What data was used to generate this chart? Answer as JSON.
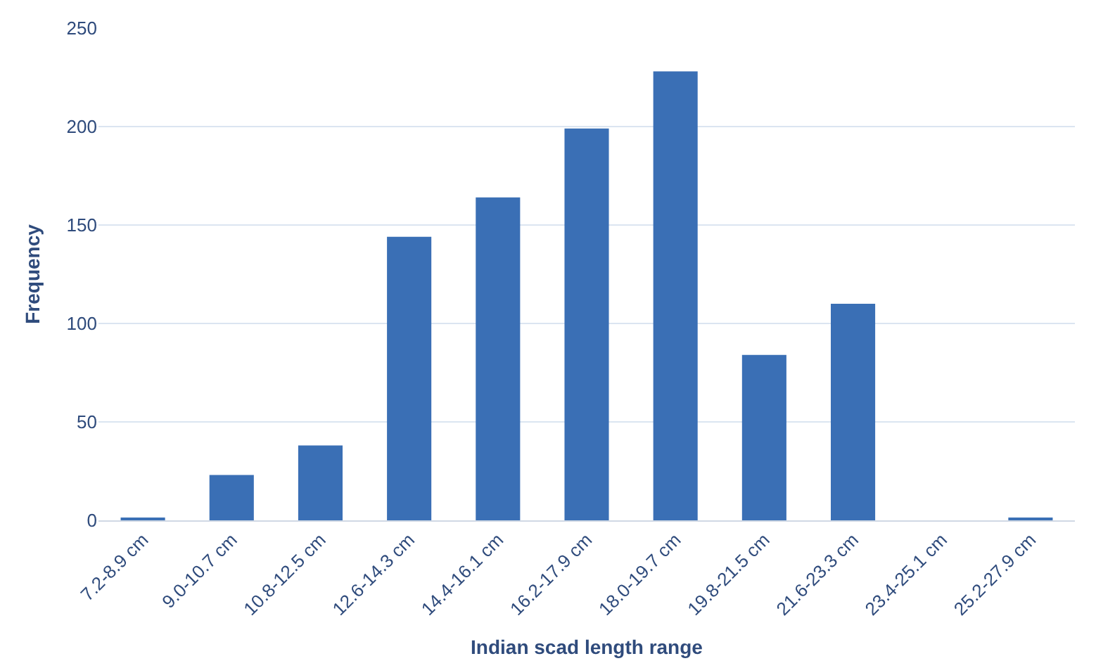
{
  "chart_data": {
    "type": "bar",
    "xlabel": "Indian scad length range",
    "ylabel": "Frequency",
    "categories": [
      "7.2-8.9 cm",
      "9.0-10.7 cm",
      "10.8-12.5 cm",
      "12.6-14.3 cm",
      "14.4-16.1 cm",
      "16.2-17.9 cm",
      "18.0-19.7 cm",
      "19.8-21.5 cm",
      "21.6-23.3 cm",
      "23.4-25.1 cm",
      "25.2-27.9 cm"
    ],
    "values": [
      1,
      23,
      38,
      144,
      164,
      199,
      228,
      84,
      110,
      0,
      1
    ],
    "color": "#3a6fb5",
    "ylim": [
      0,
      250
    ],
    "yticks": [
      0,
      50,
      100,
      150,
      200,
      250
    ],
    "grid": "y",
    "legend": false
  }
}
